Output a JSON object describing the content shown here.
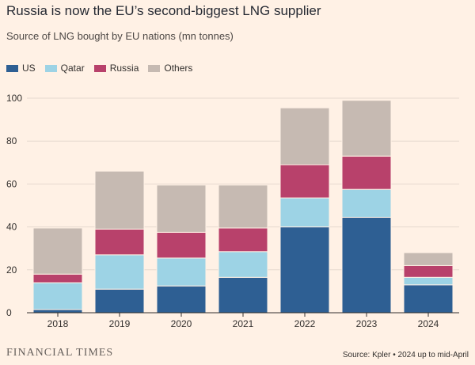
{
  "title": "Russia is now the EU’s second-biggest LNG supplier",
  "subtitle": "Source of LNG bought by EU nations (mn tonnes)",
  "footer": {
    "brand": "FINANCIAL TIMES",
    "source": "Source: Kpler • 2024 up to mid-April"
  },
  "chart_data": {
    "type": "bar",
    "stacked": true,
    "categories": [
      "2018",
      "2019",
      "2020",
      "2021",
      "2022",
      "2023",
      "2024"
    ],
    "series": [
      {
        "name": "US",
        "color": "#2E5F93",
        "values": [
          1.5,
          11,
          12.5,
          16.5,
          40,
          44.5,
          13
        ]
      },
      {
        "name": "Qatar",
        "color": "#9DD3E5",
        "values": [
          12.5,
          16,
          13,
          12,
          13.5,
          13,
          3.5
        ]
      },
      {
        "name": "Russia",
        "color": "#B8416B",
        "values": [
          4,
          12,
          12,
          11,
          15.5,
          15.5,
          5.5
        ]
      },
      {
        "name": "Others",
        "color": "#C6BAB2",
        "values": [
          21.5,
          27,
          22,
          20,
          26.5,
          26,
          6
        ]
      }
    ],
    "yticks": [
      0,
      20,
      40,
      60,
      80,
      100
    ],
    "ylim": [
      0,
      100
    ],
    "grid": true,
    "legend_position": "top-left",
    "xlabel": "",
    "ylabel": ""
  }
}
